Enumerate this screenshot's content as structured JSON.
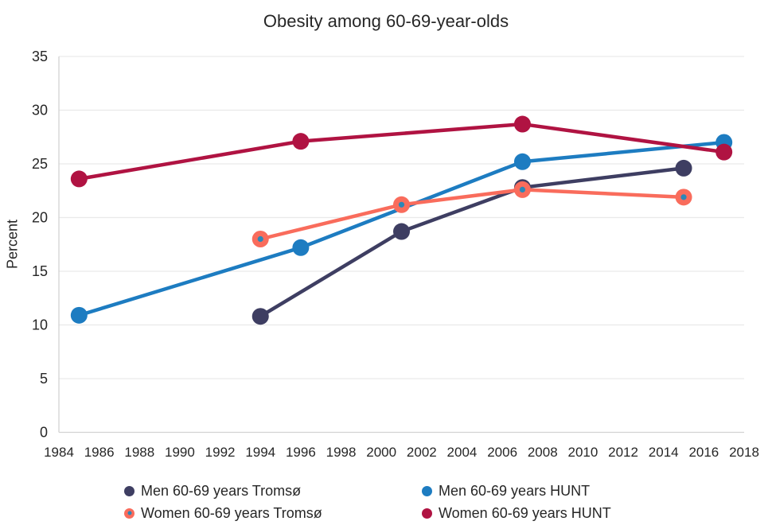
{
  "chart_data": {
    "type": "line",
    "title": "Obesity among 60-69-year-olds",
    "ylabel": "Percent",
    "xlabel": "",
    "xlim": [
      1984,
      2018
    ],
    "ylim": [
      0,
      35
    ],
    "x_ticks": [
      1984,
      1986,
      1988,
      1990,
      1992,
      1994,
      1996,
      1998,
      2000,
      2002,
      2004,
      2006,
      2008,
      2010,
      2012,
      2014,
      2016,
      2018
    ],
    "y_ticks": [
      0,
      5,
      10,
      15,
      20,
      25,
      30,
      35
    ],
    "grid": "horizontal",
    "legend_position": "bottom",
    "colors": {
      "grid": "#e9e9e9",
      "axis": "#d2d2d2",
      "text": "#262626"
    },
    "series": [
      {
        "name": "Men 60-69 years Tromsø",
        "color": "#3e3e62",
        "x": [
          1994,
          2001,
          2007,
          2015
        ],
        "values": [
          10.8,
          18.7,
          22.8,
          24.6
        ]
      },
      {
        "name": "Men 60-69 years HUNT",
        "color": "#1d7cc1",
        "x": [
          1985,
          1996,
          2007,
          2017
        ],
        "values": [
          10.9,
          17.2,
          25.2,
          27.0
        ]
      },
      {
        "name": "Women 60-69 years Tromsø",
        "color": "#f96c5c",
        "marker_center": "#2b87b8",
        "x": [
          1994,
          2001,
          2007,
          2015
        ],
        "values": [
          18.0,
          21.2,
          22.6,
          21.9
        ]
      },
      {
        "name": "Women 60-69 years HUNT",
        "color": "#b01342",
        "x": [
          1985,
          1996,
          2007,
          2017
        ],
        "values": [
          23.6,
          27.1,
          28.7,
          26.1
        ]
      }
    ]
  }
}
